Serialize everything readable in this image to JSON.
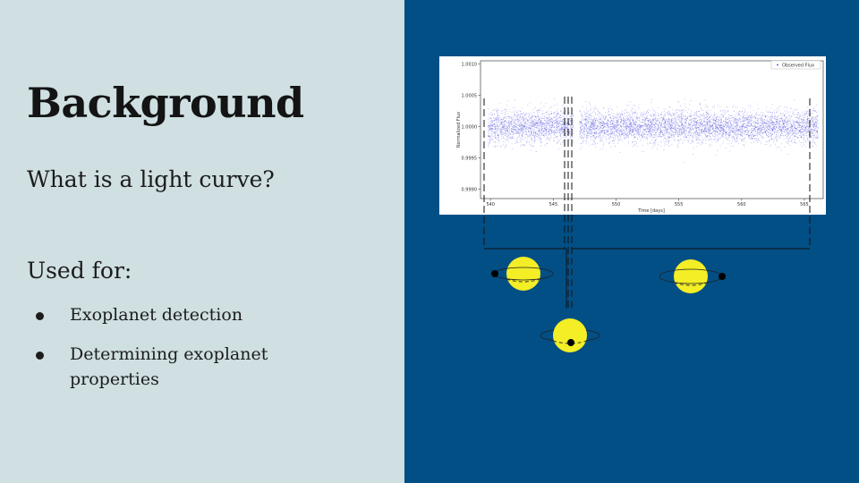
{
  "slide": {
    "title": "Background",
    "subtitle": "What is a light curve?",
    "used_for_heading": "Used for:",
    "bullets": [
      "Exoplanet detection",
      "Determining exoplanet properties"
    ]
  },
  "colors": {
    "left_background": "#cfdfe2",
    "right_background": "#024f86",
    "flux_points": "#3b3bdc",
    "star": "#f3ee26",
    "planet": "#000000"
  },
  "chart_data": {
    "type": "scatter",
    "title": "",
    "xlabel": "Time [days]",
    "ylabel": "Normalized Flux",
    "xlim": [
      539.2,
      566.5
    ],
    "ylim": [
      0.99885,
      1.00105
    ],
    "xticks": [
      540,
      545,
      550,
      555,
      560,
      565
    ],
    "yticks": [
      0.999,
      0.9995,
      1.0,
      1.0005,
      1.001
    ],
    "ytick_labels": [
      "0.9990",
      "0.9995",
      "1.0000",
      "1.0005",
      "1.0010"
    ],
    "legend": {
      "entries": [
        "Observed Flux"
      ],
      "placement": "top-right"
    },
    "series": [
      {
        "name": "Observed Flux",
        "segments": [
          {
            "x_start": 539.8,
            "x_end": 546.6
          },
          {
            "x_start": 547.1,
            "x_end": 566.1
          }
        ],
        "mean_flux": 1.0,
        "scatter_sigma": 0.00013,
        "transits": [
          {
            "x": 546.9,
            "depth": 0.0003
          }
        ]
      }
    ],
    "grid": false
  },
  "diagram": {
    "stars": [
      {
        "name": "star-left",
        "planet_side": "left"
      },
      {
        "name": "star-transit",
        "planet_side": "front"
      },
      {
        "name": "star-right",
        "planet_side": "right"
      }
    ]
  }
}
